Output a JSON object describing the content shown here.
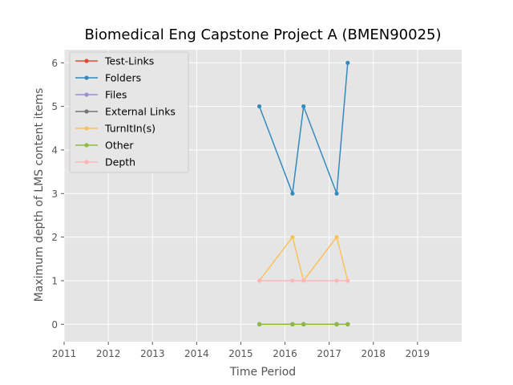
{
  "chart_data": {
    "type": "line",
    "title": "Biomedical Eng Capstone Project A (BMEN90025)",
    "xlabel": "Time Period",
    "ylabel": "Maximum depth of LMS content items",
    "xlim": [
      2011,
      2020
    ],
    "ylim": [
      -0.4,
      6.3
    ],
    "xticks": [
      "2011",
      "2012",
      "2013",
      "2014",
      "2015",
      "2016",
      "2017",
      "2018",
      "2019"
    ],
    "yticks": [
      "0",
      "1",
      "2",
      "3",
      "4",
      "5",
      "6"
    ],
    "grid": true,
    "legend_position": "top-left",
    "x": [
      2015.42,
      2016.17,
      2016.42,
      2017.17,
      2017.42
    ],
    "series": [
      {
        "name": "Test-Links",
        "color": "#E24A33",
        "values": [
          0,
          0,
          0,
          0,
          0
        ]
      },
      {
        "name": "Folders",
        "color": "#348ABD",
        "values": [
          5,
          3,
          5,
          3,
          6
        ]
      },
      {
        "name": "Files",
        "color": "#988ED5",
        "values": [
          0,
          0,
          0,
          0,
          0
        ]
      },
      {
        "name": "External Links",
        "color": "#777777",
        "values": [
          0,
          0,
          0,
          0,
          0
        ]
      },
      {
        "name": "TurnItIn(s)",
        "color": "#FBC15E",
        "values": [
          1,
          2,
          1,
          2,
          1
        ]
      },
      {
        "name": "Other",
        "color": "#8EBA42",
        "values": [
          0,
          0,
          0,
          0,
          0
        ]
      },
      {
        "name": "Depth",
        "color": "#FFB5B8",
        "values": [
          1,
          1,
          1,
          1,
          1
        ]
      }
    ]
  }
}
